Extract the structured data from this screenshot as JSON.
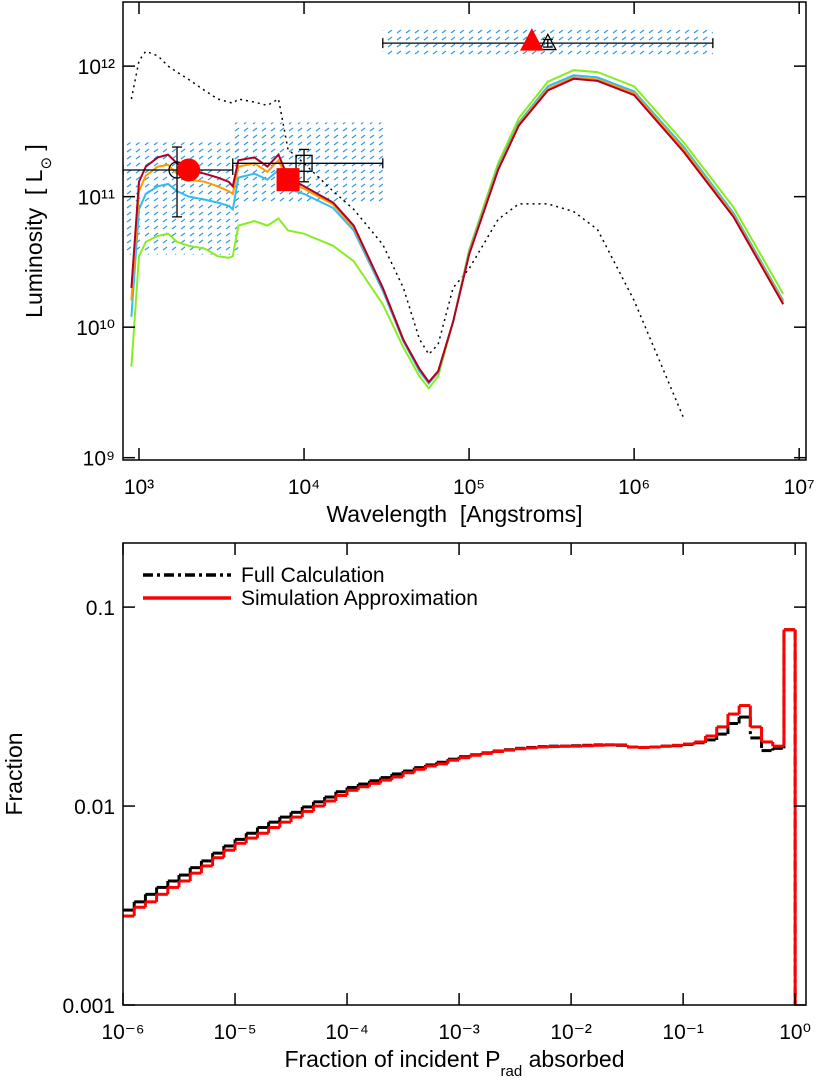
{
  "chart_data": [
    {
      "type": "line",
      "xscale": "log",
      "yscale": "log",
      "xlabel": "Wavelength  [Angstroms]",
      "ylabel": [
        "Luminosity  [ L",
        "⊙",
        " ]"
      ],
      "xlim": [
        800,
        11000000
      ],
      "ylim": [
        960000000,
        3100000000000
      ],
      "xticks": [
        {
          "value": 1000,
          "label": "10³"
        },
        {
          "value": 10000,
          "label": "10⁴"
        },
        {
          "value": 100000,
          "label": "10⁵"
        },
        {
          "value": 1000000,
          "label": "10⁶"
        },
        {
          "value": 10000000,
          "label": "10⁷"
        }
      ],
      "yticks": [
        {
          "value": 1000000000,
          "label": "10⁹"
        },
        {
          "value": 10000000000,
          "label": "10¹⁰"
        },
        {
          "value": 100000000000,
          "label": "10¹¹"
        },
        {
          "value": 1000000000000,
          "label": "10¹²"
        }
      ],
      "x": [
        900,
        1000,
        1100,
        1300,
        1500,
        1700,
        2000,
        2500,
        3000,
        3500,
        3700,
        4000,
        5000,
        6000,
        7000,
        8000,
        10000,
        15000,
        20000,
        30000,
        40000,
        50000,
        57000,
        65000,
        80000,
        100000,
        150000,
        200000,
        300000,
        430000,
        600000,
        1000000,
        2000000,
        4000000,
        8000000
      ],
      "bands": [
        {
          "color": "#3399dd",
          "x0": 800,
          "x1": 4000,
          "y0": 36000000000,
          "y1": 260000000000
        },
        {
          "color": "#3399dd",
          "x0": 3700,
          "x1": 30000,
          "y0": 90000000000,
          "y1": 370000000000
        },
        {
          "color": "#3399dd",
          "x0": 30000,
          "x1": 3000000,
          "y0": 1200000000000,
          "y1": 1900000000000
        }
      ],
      "series": [
        {
          "color": "#000000",
          "dash": "dotted",
          "values": [
            560000000000,
            1100000000000,
            1300000000000,
            1200000000000,
            1000000000000,
            900000000000,
            790000000000,
            650000000000,
            560000000000,
            530000000000,
            520000000000,
            560000000000,
            530000000000,
            500000000000,
            560000000000,
            230000000000,
            180000000000,
            110000000000,
            80000000000,
            43000000000,
            20000000000,
            8100000000,
            6200000000,
            7400000000,
            20000000000,
            28000000000,
            67000000000,
            88000000000,
            88000000000,
            77000000000,
            56000000000,
            16000000000,
            2000000000,
            null,
            null
          ]
        },
        {
          "color": "#88ee22",
          "values": [
            5000000000,
            35000000000,
            45000000000,
            50000000000,
            52000000000,
            45000000000,
            42000000000,
            40000000000,
            35000000000,
            34000000000,
            35000000000,
            60000000000,
            65000000000,
            60000000000,
            68000000000,
            55000000000,
            52000000000,
            42000000000,
            32000000000,
            15000000000,
            7000000000,
            4200000000,
            3400000000,
            4200000000,
            11000000000,
            39000000000,
            180000000000,
            400000000000,
            760000000000,
            930000000000,
            900000000000,
            700000000000,
            260000000000,
            83000000000,
            18000000000
          ]
        },
        {
          "color": "#33bbee",
          "values": [
            12000000000,
            80000000000,
            105000000000,
            120000000000,
            125000000000,
            110000000000,
            100000000000,
            95000000000,
            90000000000,
            85000000000,
            80000000000,
            140000000000,
            150000000000,
            135000000000,
            160000000000,
            115000000000,
            105000000000,
            82000000000,
            55000000000,
            19000000000,
            7800000000,
            4600000000,
            3700000000,
            4500000000,
            11000000000,
            38000000000,
            170000000000,
            370000000000,
            700000000000,
            850000000000,
            820000000000,
            640000000000,
            240000000000,
            75000000000,
            16000000000
          ]
        },
        {
          "color": "#ff9900",
          "values": [
            16000000000,
            110000000000,
            145000000000,
            170000000000,
            175000000000,
            150000000000,
            135000000000,
            130000000000,
            120000000000,
            110000000000,
            105000000000,
            170000000000,
            180000000000,
            155000000000,
            190000000000,
            130000000000,
            115000000000,
            87000000000,
            58000000000,
            20000000000,
            8000000000,
            4800000000,
            3800000000,
            4600000000,
            11000000000,
            37000000000,
            165000000000,
            360000000000,
            670000000000,
            820000000000,
            790000000000,
            620000000000,
            230000000000,
            72000000000,
            15500000000
          ]
        },
        {
          "color": "#b0002a",
          "values": [
            20000000000,
            130000000000,
            170000000000,
            200000000000,
            210000000000,
            180000000000,
            160000000000,
            150000000000,
            140000000000,
            130000000000,
            120000000000,
            190000000000,
            200000000000,
            170000000000,
            210000000000,
            140000000000,
            120000000000,
            90000000000,
            60000000000,
            20000000000,
            8000000000,
            4800000000,
            3800000000,
            4600000000,
            11000000000,
            36000000000,
            160000000000,
            350000000000,
            650000000000,
            800000000000,
            770000000000,
            600000000000,
            220000000000,
            70000000000,
            15000000000
          ]
        }
      ],
      "observations": [
        {
          "marker": "circle",
          "color": "#000000",
          "filled": false,
          "x": 1700,
          "y": 160000000000,
          "xerr": [
            800,
            3700
          ],
          "yerr": [
            70000000000,
            240000000000
          ]
        },
        {
          "marker": "square",
          "color": "#000000",
          "filled": false,
          "x": 10000,
          "y": 180000000000,
          "xerr": [
            3700,
            30000
          ],
          "yerr": [
            130000000000,
            230000000000
          ]
        },
        {
          "marker": "triangle",
          "color": "#000000",
          "filled": false,
          "x": 300000,
          "y": 1500000000000,
          "xerr": [
            30000,
            3000000
          ],
          "yerr": [
            1400000000000,
            1600000000000
          ]
        },
        {
          "marker": "circle",
          "color": "#ff0000",
          "filled": true,
          "x": 2000,
          "y": 160000000000
        },
        {
          "marker": "square",
          "color": "#ff0000",
          "filled": true,
          "x": 8000,
          "y": 135000000000
        },
        {
          "marker": "triangle",
          "color": "#ff0000",
          "filled": true,
          "x": 240000,
          "y": 1550000000000
        }
      ]
    },
    {
      "type": "histogram",
      "xscale": "log",
      "yscale": "log",
      "xlabel": [
        "Fraction of incident P",
        "rad",
        " absorbed"
      ],
      "ylabel": "Fraction",
      "legend": "upper left",
      "xlim": [
        1e-06,
        1.25
      ],
      "ylim": [
        0.001,
        0.21
      ],
      "xticks": [
        {
          "value": 1e-06,
          "label": "10⁻⁶"
        },
        {
          "value": 1e-05,
          "label": "10⁻⁵"
        },
        {
          "value": 0.0001,
          "label": "10⁻⁴"
        },
        {
          "value": 0.001,
          "label": "10⁻³"
        },
        {
          "value": 0.01,
          "label": "10⁻²"
        },
        {
          "value": 0.1,
          "label": "10⁻¹"
        },
        {
          "value": 1,
          "label": "10⁰"
        }
      ],
      "yticks": [
        0.001,
        0.01,
        0.1
      ],
      "bins": [
        1e-06,
        1.259e-06,
        1.585e-06,
        1.995e-06,
        2.512e-06,
        3.162e-06,
        3.981e-06,
        5.012e-06,
        6.31e-06,
        7.943e-06,
        1e-05,
        1.259e-05,
        1.585e-05,
        1.995e-05,
        2.512e-05,
        3.162e-05,
        3.981e-05,
        5.012e-05,
        6.31e-05,
        7.943e-05,
        0.0001,
        0.0001259,
        0.0001585,
        0.0001995,
        0.0002512,
        0.0003162,
        0.0003981,
        0.0005012,
        0.000631,
        0.0007943,
        0.001,
        0.001259,
        0.001585,
        0.001995,
        0.002512,
        0.003162,
        0.003981,
        0.005012,
        0.00631,
        0.007943,
        0.01,
        0.01259,
        0.01585,
        0.01995,
        0.02512,
        0.03162,
        0.03981,
        0.05012,
        0.0631,
        0.07943,
        0.1,
        0.1259,
        0.1585,
        0.1995,
        0.2512,
        0.3162,
        0.3981,
        0.5012,
        0.631,
        0.7943,
        1
      ],
      "series": [
        {
          "name": "Full Calculation",
          "color": "#000000",
          "dash": "dashdot",
          "values": [
            0.003,
            0.0033,
            0.0036,
            0.0039,
            0.0042,
            0.0045,
            0.0049,
            0.0053,
            0.0058,
            0.0063,
            0.0068,
            0.0073,
            0.0078,
            0.0083,
            0.0088,
            0.0093,
            0.0099,
            0.0105,
            0.0111,
            0.0118,
            0.0124,
            0.0129,
            0.0134,
            0.0139,
            0.0145,
            0.015,
            0.0156,
            0.0161,
            0.0166,
            0.0172,
            0.0177,
            0.0181,
            0.0185,
            0.0189,
            0.0192,
            0.0195,
            0.0197,
            0.0199,
            0.02,
            0.02,
            0.0201,
            0.0202,
            0.0203,
            0.0203,
            0.0202,
            0.0198,
            0.0197,
            0.0198,
            0.02,
            0.0201,
            0.0204,
            0.0208,
            0.0215,
            0.023,
            0.026,
            0.028,
            0.022,
            0.019,
            0.0195,
            0.077
          ]
        },
        {
          "name": "Simulation Approximation",
          "color": "#ff0000",
          "values": [
            0.0028,
            0.0031,
            0.0033,
            0.0036,
            0.0039,
            0.0042,
            0.0046,
            0.005,
            0.0055,
            0.006,
            0.0065,
            0.0069,
            0.0073,
            0.0078,
            0.0083,
            0.0088,
            0.0094,
            0.01,
            0.0106,
            0.0113,
            0.012,
            0.0125,
            0.013,
            0.0135,
            0.014,
            0.0147,
            0.0153,
            0.0159,
            0.0163,
            0.017,
            0.0175,
            0.018,
            0.0184,
            0.0188,
            0.0191,
            0.0194,
            0.0196,
            0.0198,
            0.0199,
            0.02,
            0.02,
            0.0201,
            0.0202,
            0.0203,
            0.0203,
            0.0198,
            0.0197,
            0.0198,
            0.02,
            0.0202,
            0.0205,
            0.021,
            0.0225,
            0.025,
            0.029,
            0.032,
            0.025,
            0.021,
            0.02,
            0.077
          ]
        }
      ]
    }
  ]
}
